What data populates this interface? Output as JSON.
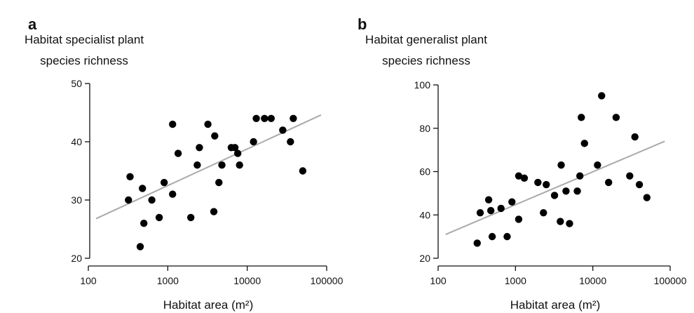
{
  "chart_data": [
    {
      "type": "scatter",
      "panel_label": "a",
      "ylabel_line1": "Habitat specialist plant",
      "ylabel_line2": "species richness",
      "xlabel": "Habitat area (m²)",
      "x_scale": "log",
      "xlim": [
        100,
        100000
      ],
      "ylim": [
        20,
        50
      ],
      "x_ticks": [
        100,
        1000,
        10000,
        100000
      ],
      "x_tick_labels": [
        "100",
        "1000",
        "10000",
        "100000"
      ],
      "y_ticks": [
        20,
        30,
        40,
        50
      ],
      "y_tick_labels": [
        "20",
        "30",
        "40",
        "50"
      ],
      "grid": false,
      "trendline": {
        "x": [
          125,
          85000
        ],
        "y": [
          26.8,
          44.6
        ]
      },
      "points": [
        {
          "x": 320,
          "y": 30
        },
        {
          "x": 335,
          "y": 34
        },
        {
          "x": 450,
          "y": 22
        },
        {
          "x": 480,
          "y": 32
        },
        {
          "x": 500,
          "y": 26
        },
        {
          "x": 630,
          "y": 30
        },
        {
          "x": 780,
          "y": 27
        },
        {
          "x": 900,
          "y": 33
        },
        {
          "x": 1150,
          "y": 31
        },
        {
          "x": 1150,
          "y": 43
        },
        {
          "x": 1350,
          "y": 38
        },
        {
          "x": 1950,
          "y": 27
        },
        {
          "x": 2350,
          "y": 36
        },
        {
          "x": 2500,
          "y": 39
        },
        {
          "x": 3200,
          "y": 43
        },
        {
          "x": 3800,
          "y": 28
        },
        {
          "x": 3900,
          "y": 41
        },
        {
          "x": 4400,
          "y": 33
        },
        {
          "x": 4800,
          "y": 36
        },
        {
          "x": 6300,
          "y": 39
        },
        {
          "x": 7000,
          "y": 39
        },
        {
          "x": 7600,
          "y": 38
        },
        {
          "x": 8000,
          "y": 36
        },
        {
          "x": 12000,
          "y": 40
        },
        {
          "x": 13000,
          "y": 44
        },
        {
          "x": 16500,
          "y": 44
        },
        {
          "x": 20000,
          "y": 44
        },
        {
          "x": 28000,
          "y": 42
        },
        {
          "x": 35000,
          "y": 40
        },
        {
          "x": 38000,
          "y": 44
        },
        {
          "x": 50000,
          "y": 35
        }
      ]
    },
    {
      "type": "scatter",
      "panel_label": "b",
      "ylabel_line1": "Habitat generalist plant",
      "ylabel_line2": "species richness",
      "xlabel": "Habitat area (m²)",
      "x_scale": "log",
      "xlim": [
        100,
        100000
      ],
      "ylim": [
        20,
        100
      ],
      "x_ticks": [
        100,
        1000,
        10000,
        100000
      ],
      "x_tick_labels": [
        "100",
        "1000",
        "10000",
        "100000"
      ],
      "y_ticks": [
        20,
        40,
        60,
        80,
        100
      ],
      "y_tick_labels": [
        "20",
        "40",
        "60",
        "80",
        "100"
      ],
      "grid": false,
      "trendline": {
        "x": [
          125,
          85000
        ],
        "y": [
          31,
          74
        ]
      },
      "points": [
        {
          "x": 320,
          "y": 27
        },
        {
          "x": 350,
          "y": 41
        },
        {
          "x": 450,
          "y": 47
        },
        {
          "x": 480,
          "y": 42
        },
        {
          "x": 500,
          "y": 30
        },
        {
          "x": 650,
          "y": 43
        },
        {
          "x": 780,
          "y": 30
        },
        {
          "x": 900,
          "y": 46
        },
        {
          "x": 1100,
          "y": 58
        },
        {
          "x": 1100,
          "y": 38
        },
        {
          "x": 1300,
          "y": 57
        },
        {
          "x": 1950,
          "y": 55
        },
        {
          "x": 2300,
          "y": 41
        },
        {
          "x": 2500,
          "y": 54
        },
        {
          "x": 3200,
          "y": 49
        },
        {
          "x": 3800,
          "y": 37
        },
        {
          "x": 3900,
          "y": 63
        },
        {
          "x": 4500,
          "y": 51
        },
        {
          "x": 5000,
          "y": 36
        },
        {
          "x": 6300,
          "y": 51
        },
        {
          "x": 6800,
          "y": 58
        },
        {
          "x": 7100,
          "y": 85
        },
        {
          "x": 7800,
          "y": 73
        },
        {
          "x": 11500,
          "y": 63
        },
        {
          "x": 13000,
          "y": 95
        },
        {
          "x": 16000,
          "y": 55
        },
        {
          "x": 20000,
          "y": 85
        },
        {
          "x": 30000,
          "y": 58
        },
        {
          "x": 35000,
          "y": 76
        },
        {
          "x": 40000,
          "y": 54
        },
        {
          "x": 50000,
          "y": 48
        }
      ]
    }
  ]
}
